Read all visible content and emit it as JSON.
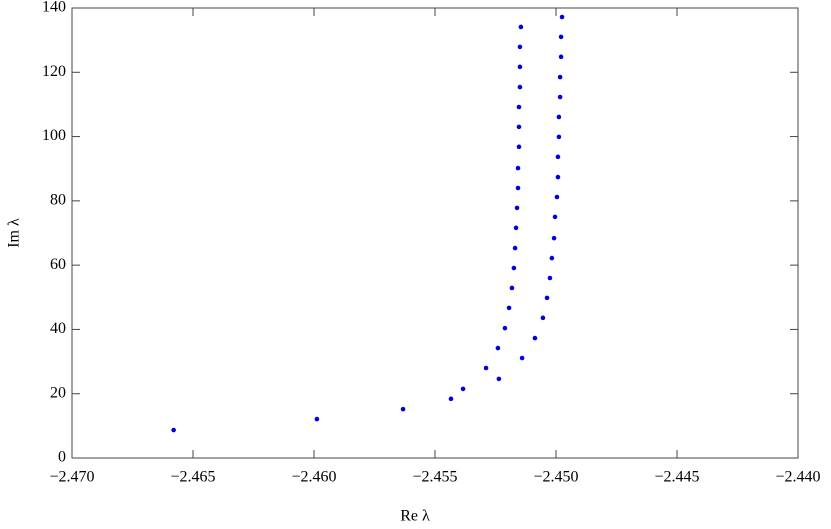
{
  "chart_data": {
    "type": "scatter",
    "x_label": "Re λ",
    "y_label": "Im λ",
    "xlim": [
      -2.47,
      -2.44
    ],
    "ylim": [
      0,
      140
    ],
    "xticks": [
      {
        "value": -2.47,
        "label": "−2.470"
      },
      {
        "value": -2.465,
        "label": "−2.465"
      },
      {
        "value": -2.46,
        "label": "−2.460"
      },
      {
        "value": -2.455,
        "label": "−2.455"
      },
      {
        "value": -2.45,
        "label": "−2.450"
      },
      {
        "value": -2.445,
        "label": "−2.445"
      },
      {
        "value": -2.44,
        "label": "−2.440"
      }
    ],
    "yticks": [
      0,
      20,
      40,
      60,
      80,
      100,
      120,
      140
    ],
    "grid": false,
    "series": [
      {
        "color": "#0000e0",
        "x": [
          -2.4658,
          -2.45988,
          -2.45632,
          -2.45434,
          -2.45384,
          -2.45289,
          -2.45236,
          -2.4524,
          -2.4514,
          -2.45211,
          -2.45087,
          -2.45194,
          -2.45054,
          -2.45182,
          -2.45037,
          -2.45174,
          -2.45025,
          -2.45169,
          -2.45017,
          -2.45165,
          -2.45008,
          -2.45161,
          -2.45004,
          -2.45157,
          -2.44996,
          -2.45157,
          -2.44992,
          -2.45153,
          -2.44992,
          -2.45153,
          -2.44988,
          -2.45153,
          -2.44988,
          -2.45149,
          -2.44983,
          -2.45149,
          -2.44983,
          -2.45149,
          -2.44979,
          -2.45145,
          -2.44979,
          -2.44975
        ],
        "values": [
          8.7,
          12.1,
          15.2,
          18.4,
          21.5,
          28.0,
          24.6,
          34.2,
          31.1,
          40.4,
          37.3,
          46.7,
          43.6,
          52.9,
          49.8,
          59.1,
          56.0,
          65.3,
          62.2,
          71.6,
          68.4,
          77.8,
          75.0,
          84.0,
          81.2,
          90.2,
          87.4,
          96.8,
          93.7,
          103.0,
          99.9,
          109.2,
          106.1,
          115.4,
          112.3,
          121.7,
          118.5,
          127.9,
          124.8,
          134.1,
          131.0,
          137.2
        ]
      }
    ]
  }
}
